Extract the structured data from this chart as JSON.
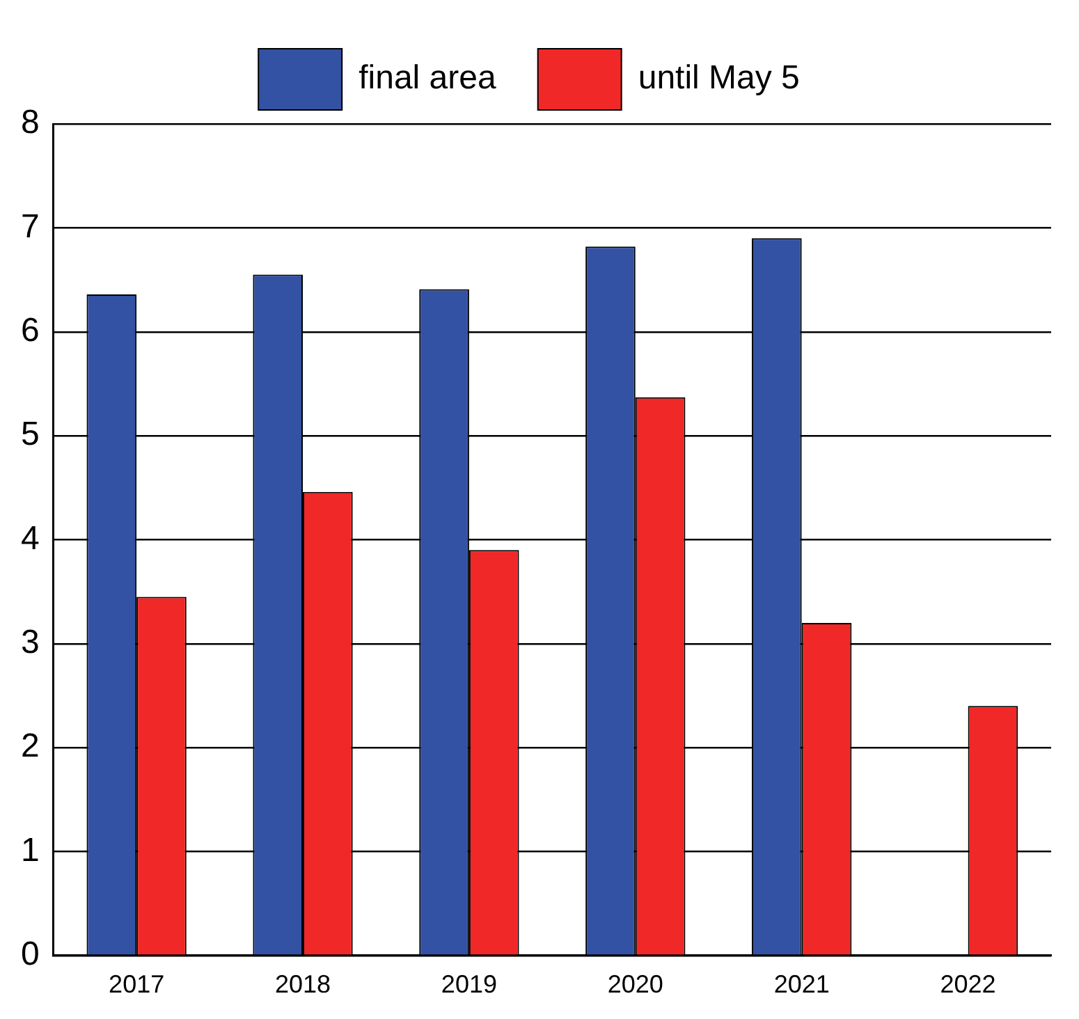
{
  "chart_data": {
    "type": "bar",
    "categories": [
      "2017",
      "2018",
      "2019",
      "2020",
      "2021",
      "2022"
    ],
    "series": [
      {
        "name": "final area",
        "color": "#3352a3",
        "values": [
          6.36,
          6.55,
          6.41,
          6.82,
          6.9,
          null
        ]
      },
      {
        "name": "until May 5",
        "color": "#f02828",
        "values": [
          3.45,
          4.46,
          3.9,
          5.37,
          3.2,
          2.4
        ]
      }
    ],
    "ylim": [
      0,
      8
    ],
    "yticks": [
      0,
      1,
      2,
      3,
      4,
      5,
      6,
      7,
      8
    ],
    "grid": "y",
    "legend": "top"
  }
}
